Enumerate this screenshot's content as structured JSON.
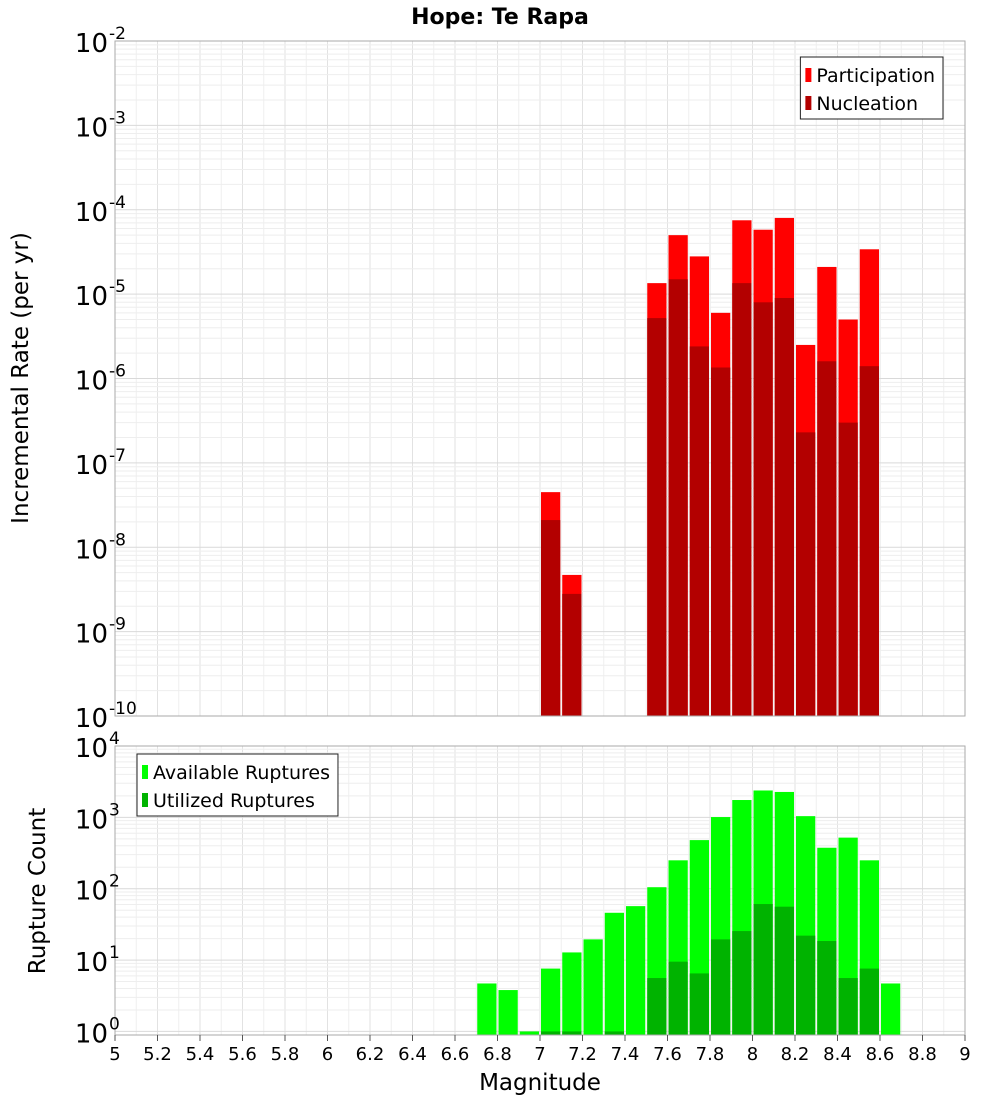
{
  "chart_data": [
    {
      "type": "bar",
      "title": "Hope: Te Rapa",
      "ylabel": "Incremental Rate (per yr)",
      "yscale": "log",
      "ylim_exponent": [
        -10,
        -2
      ],
      "y_tick_base": "10",
      "y_tick_exponents": [
        "-2",
        "-3",
        "-4",
        "-5",
        "-6",
        "-7",
        "-8",
        "-9",
        "-10"
      ],
      "xlim": [
        5,
        9
      ],
      "bin_width": 0.1,
      "grid": true,
      "legend_position": "top-right",
      "series": [
        {
          "name": "Participation",
          "color": "#ff0000",
          "x": [
            7.05,
            7.15,
            7.55,
            7.65,
            7.75,
            7.85,
            7.95,
            8.05,
            8.15,
            8.25,
            8.35,
            8.45,
            8.55
          ],
          "values": [
            4.5e-08,
            4.7e-09,
            1.35e-05,
            5e-05,
            2.8e-05,
            6e-06,
            7.5e-05,
            5.8e-05,
            8e-05,
            2.5e-06,
            2.1e-05,
            5e-06,
            3.4e-05
          ]
        },
        {
          "name": "Nucleation",
          "color": "#b30000",
          "x": [
            7.05,
            7.15,
            7.55,
            7.65,
            7.75,
            7.85,
            7.95,
            8.05,
            8.15,
            8.25,
            8.35,
            8.45,
            8.55
          ],
          "values": [
            2.1e-08,
            2.8e-09,
            5.2e-06,
            1.5e-05,
            2.4e-06,
            1.35e-06,
            1.35e-05,
            8e-06,
            9e-06,
            2.3e-07,
            1.6e-06,
            3e-07,
            1.4e-06
          ]
        }
      ]
    },
    {
      "type": "bar",
      "xlabel": "Magnitude",
      "ylabel": "Rupture Count",
      "yscale": "log",
      "ylim_exponent": [
        -0.05,
        4
      ],
      "y_tick_base": "10",
      "y_tick_exponents": [
        "4",
        "3",
        "2",
        "1",
        "0"
      ],
      "xlim": [
        5,
        9
      ],
      "x_ticks": [
        "5",
        "5.2",
        "5.4",
        "5.6",
        "5.8",
        "6",
        "6.2",
        "6.4",
        "6.6",
        "6.8",
        "7",
        "7.2",
        "7.4",
        "7.6",
        "7.8",
        "8",
        "8.2",
        "8.4",
        "8.6",
        "8.8",
        "9"
      ],
      "bin_width": 0.1,
      "grid": true,
      "legend_position": "top-left",
      "series": [
        {
          "name": "Available Ruptures",
          "color": "#00ff00",
          "x": [
            6.75,
            6.85,
            6.95,
            7.05,
            7.15,
            7.25,
            7.35,
            7.45,
            7.55,
            7.65,
            7.75,
            7.85,
            7.95,
            8.05,
            8.15,
            8.25,
            8.35,
            8.45,
            8.55,
            8.65
          ],
          "values": [
            4.7,
            3.8,
            1,
            7.6,
            12.8,
            19.5,
            46,
            57,
            105,
            250,
            480,
            1010,
            1750,
            2380,
            2270,
            1040,
            375,
            520,
            250,
            4.7
          ]
        },
        {
          "name": "Utilized Ruptures",
          "color": "#00b300",
          "x": [
            7.05,
            7.15,
            7.35,
            7.55,
            7.65,
            7.75,
            7.85,
            7.95,
            8.05,
            8.15,
            8.25,
            8.35,
            8.45,
            8.55
          ],
          "values": [
            1,
            1,
            1,
            5.6,
            9.5,
            6.5,
            19.5,
            25.5,
            61,
            56,
            22,
            18.5,
            5.6,
            7.6
          ]
        }
      ]
    }
  ]
}
